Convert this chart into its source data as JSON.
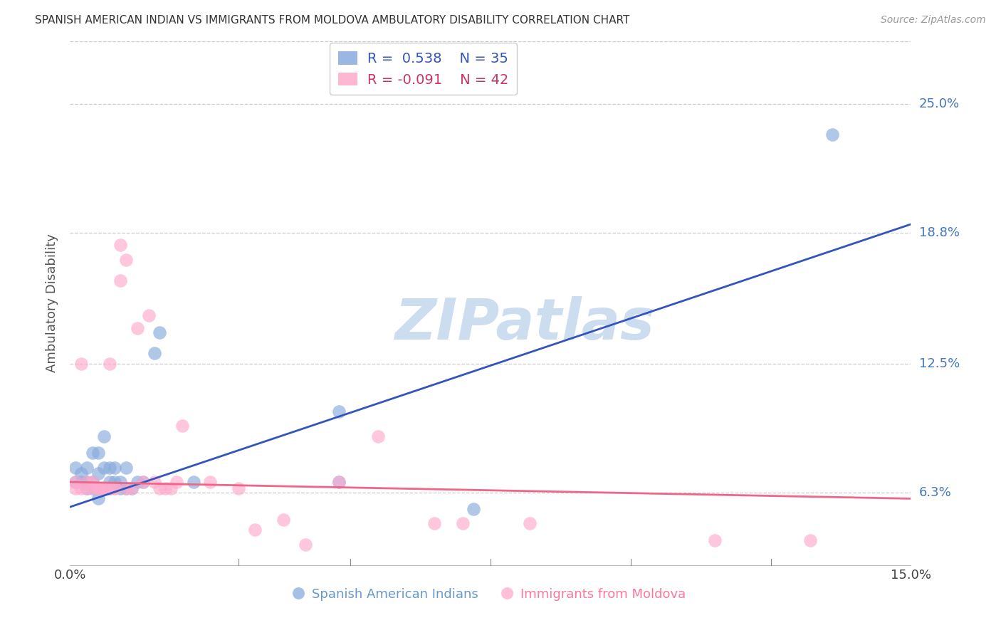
{
  "title": "SPANISH AMERICAN INDIAN VS IMMIGRANTS FROM MOLDOVA AMBULATORY DISABILITY CORRELATION CHART",
  "source": "Source: ZipAtlas.com",
  "ylabel": "Ambulatory Disability",
  "xlim": [
    0.0,
    0.15
  ],
  "ylim": [
    0.028,
    0.28
  ],
  "ytick_labels": [
    "6.3%",
    "12.5%",
    "18.8%",
    "25.0%"
  ],
  "ytick_values": [
    0.063,
    0.125,
    0.188,
    0.25
  ],
  "xtick_labels": [
    "0.0%",
    "15.0%"
  ],
  "xtick_values": [
    0.0,
    0.15
  ],
  "grid_color": "#cccccc",
  "background_color": "#ffffff",
  "blue_color": "#88aadd",
  "pink_color": "#ffaacc",
  "blue_line_color": "#3355bb",
  "pink_line_color": "#ee6688",
  "legend_R_blue": "0.538",
  "legend_N_blue": "35",
  "legend_R_pink": "-0.091",
  "legend_N_pink": "42",
  "watermark": "ZIPatlas",
  "blue_line_x0": 0.0,
  "blue_line_y0": 0.056,
  "blue_line_x1": 0.15,
  "blue_line_y1": 0.192,
  "pink_line_x0": 0.0,
  "pink_line_y0": 0.068,
  "pink_line_x1": 0.15,
  "pink_line_y1": 0.06,
  "blue_scatter_x": [
    0.001,
    0.001,
    0.002,
    0.002,
    0.003,
    0.003,
    0.003,
    0.004,
    0.004,
    0.004,
    0.005,
    0.005,
    0.005,
    0.006,
    0.006,
    0.006,
    0.007,
    0.007,
    0.007,
    0.008,
    0.008,
    0.009,
    0.009,
    0.01,
    0.01,
    0.011,
    0.012,
    0.013,
    0.015,
    0.016,
    0.022,
    0.048,
    0.048,
    0.072,
    0.136
  ],
  "blue_scatter_y": [
    0.068,
    0.075,
    0.068,
    0.072,
    0.068,
    0.065,
    0.075,
    0.065,
    0.082,
    0.068,
    0.082,
    0.072,
    0.06,
    0.065,
    0.09,
    0.075,
    0.068,
    0.065,
    0.075,
    0.068,
    0.075,
    0.065,
    0.068,
    0.075,
    0.065,
    0.065,
    0.068,
    0.068,
    0.13,
    0.14,
    0.068,
    0.102,
    0.068,
    0.055,
    0.235
  ],
  "pink_scatter_x": [
    0.001,
    0.001,
    0.002,
    0.002,
    0.003,
    0.003,
    0.004,
    0.004,
    0.005,
    0.005,
    0.006,
    0.006,
    0.007,
    0.007,
    0.008,
    0.008,
    0.009,
    0.009,
    0.01,
    0.01,
    0.011,
    0.012,
    0.013,
    0.014,
    0.015,
    0.016,
    0.017,
    0.018,
    0.019,
    0.02,
    0.025,
    0.03,
    0.033,
    0.038,
    0.042,
    0.048,
    0.055,
    0.065,
    0.07,
    0.082,
    0.115,
    0.132
  ],
  "pink_scatter_y": [
    0.065,
    0.068,
    0.065,
    0.125,
    0.065,
    0.068,
    0.065,
    0.068,
    0.065,
    0.065,
    0.065,
    0.065,
    0.125,
    0.065,
    0.065,
    0.065,
    0.165,
    0.182,
    0.065,
    0.175,
    0.065,
    0.142,
    0.068,
    0.148,
    0.068,
    0.065,
    0.065,
    0.065,
    0.068,
    0.095,
    0.068,
    0.065,
    0.045,
    0.05,
    0.038,
    0.068,
    0.09,
    0.048,
    0.048,
    0.048,
    0.04,
    0.04
  ]
}
